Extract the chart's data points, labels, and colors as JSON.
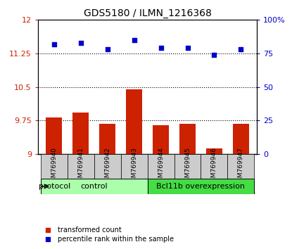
{
  "title": "GDS5180 / ILMN_1216368",
  "samples": [
    "GSM769940",
    "GSM769941",
    "GSM769942",
    "GSM769943",
    "GSM769944",
    "GSM769945",
    "GSM769946",
    "GSM769947"
  ],
  "bar_values": [
    9.82,
    9.92,
    9.68,
    10.45,
    9.65,
    9.68,
    9.12,
    9.68
  ],
  "scatter_values": [
    82,
    83,
    78,
    85,
    79,
    79,
    74,
    78
  ],
  "ylim_left": [
    9.0,
    12.0
  ],
  "ylim_right": [
    0,
    100
  ],
  "yticks_left": [
    9.0,
    9.75,
    10.5,
    11.25,
    12.0
  ],
  "ytick_labels_left": [
    "9",
    "9.75",
    "10.5",
    "11.25",
    "12"
  ],
  "yticks_right": [
    0,
    25,
    50,
    75,
    100
  ],
  "ytick_labels_right": [
    "0",
    "25",
    "50",
    "75",
    "100%"
  ],
  "hlines": [
    9.75,
    10.5,
    11.25
  ],
  "bar_color": "#cc2200",
  "scatter_color": "#0000cc",
  "bar_bottom": 9.0,
  "group_labels": [
    "control",
    "Bcl11b overexpression"
  ],
  "group_colors": [
    "#aaffaa",
    "#44dd44"
  ],
  "group_ranges": [
    [
      0,
      3
    ],
    [
      4,
      7
    ]
  ],
  "protocol_label": "protocol",
  "legend_items": [
    "transformed count",
    "percentile rank within the sample"
  ],
  "legend_colors": [
    "#cc2200",
    "#0000cc"
  ],
  "tick_label_color_left": "#cc2200",
  "tick_label_color_right": "#0000cc",
  "bar_width": 0.6,
  "figsize": [
    4.15,
    3.54
  ],
  "dpi": 100
}
